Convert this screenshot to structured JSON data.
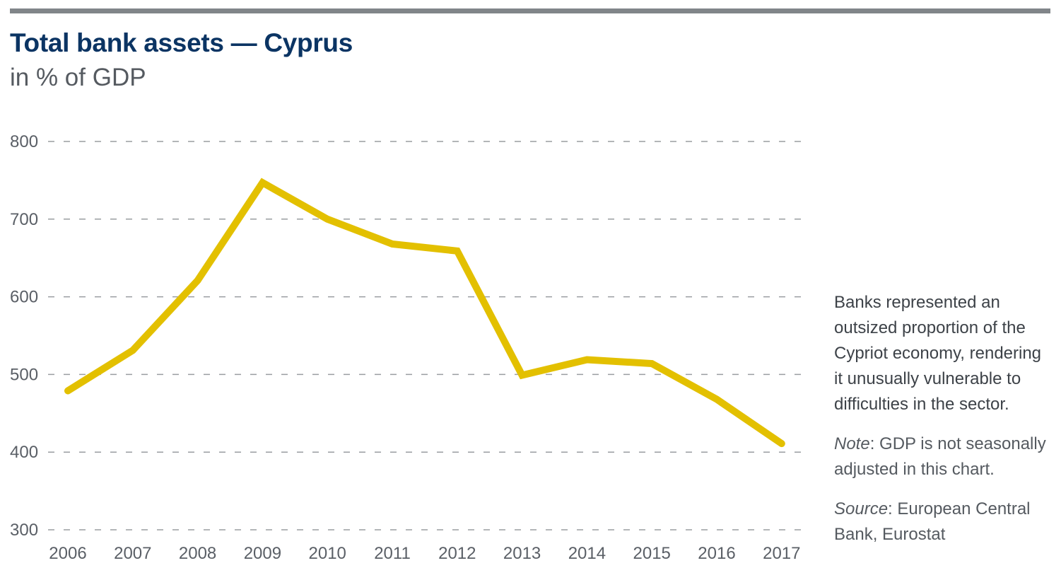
{
  "title": "Total bank assets — Cyprus",
  "subtitle": "in % of GDP",
  "colors": {
    "line": "#e3c000",
    "title": "#0b3463",
    "rule": "#818589",
    "grid": "#9a9da1"
  },
  "chart_data": {
    "type": "line",
    "x": [
      "2006",
      "2007",
      "2008",
      "2009",
      "2010",
      "2011",
      "2012",
      "2013",
      "2014",
      "2015",
      "2016",
      "2017"
    ],
    "series": [
      {
        "values": [
          479,
          531,
          621,
          747,
          700,
          668,
          659,
          499,
          519,
          514,
          468,
          411
        ]
      }
    ],
    "ylim": [
      300,
      800
    ],
    "yticks": [
      "800",
      "700",
      "600",
      "500",
      "400",
      "300"
    ],
    "grid": true
  },
  "annotation": {
    "text": "Banks represented an outsized proportion of the Cypriot economy, rendering it unusually vulnerable to difficulties in the sector.",
    "note_label": "Note",
    "note_text": ": GDP is not seasonally adjusted in this chart.",
    "source_label": "Source",
    "source_text": ": European Central Bank, Eurostat"
  }
}
